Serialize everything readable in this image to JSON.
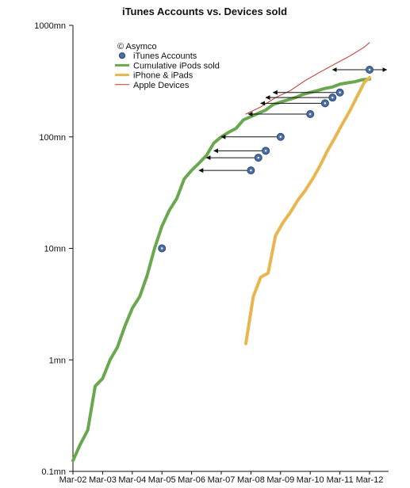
{
  "chart_data": {
    "type": "line",
    "title": "iTunes Accounts vs. Devices sold",
    "y_scale": "log",
    "ylim": [
      0.1,
      1000
    ],
    "y_ticks": [
      {
        "value": 1000,
        "label": "1000mn"
      },
      {
        "value": 100,
        "label": "100mn"
      },
      {
        "value": 10,
        "label": "10mn"
      },
      {
        "value": 1,
        "label": "1mn"
      },
      {
        "value": 0.1,
        "label": "0.1mn"
      }
    ],
    "xlim": [
      2002.17,
      2012.17
    ],
    "x_ticks": [
      {
        "value": 2002.17,
        "label": "Mar-02"
      },
      {
        "value": 2003.17,
        "label": "Mar-03"
      },
      {
        "value": 2004.17,
        "label": "Mar-04"
      },
      {
        "value": 2005.17,
        "label": "Mar-05"
      },
      {
        "value": 2006.17,
        "label": "Mar-06"
      },
      {
        "value": 2007.17,
        "label": "Mar-07"
      },
      {
        "value": 2008.17,
        "label": "Mar-08"
      },
      {
        "value": 2009.17,
        "label": "Mar-09"
      },
      {
        "value": 2010.17,
        "label": "Mar-10"
      },
      {
        "value": 2011.17,
        "label": "Mar-11"
      },
      {
        "value": 2012.17,
        "label": "Mar-12"
      }
    ],
    "legend": {
      "position": "top-left",
      "entries": [
        {
          "label": "© Asymco",
          "marker": "none"
        },
        {
          "label": "iTunes Accounts",
          "marker": "circle"
        },
        {
          "label": "Cumulative iPods sold",
          "marker": "line"
        },
        {
          "label": "iPhone & iPads",
          "marker": "line"
        },
        {
          "label": "Apple Devices",
          "marker": "line"
        }
      ]
    },
    "series": [
      {
        "name": "Cumulative iPods sold",
        "color": "#6aa84f",
        "x": [
          2002.17,
          2002.42,
          2002.67,
          2002.92,
          2003.17,
          2003.42,
          2003.67,
          2003.92,
          2004.17,
          2004.42,
          2004.67,
          2004.92,
          2005.17,
          2005.42,
          2005.67,
          2005.92,
          2006.17,
          2006.42,
          2006.67,
          2006.92,
          2007.17,
          2007.42,
          2007.67,
          2007.92,
          2008.17,
          2008.42,
          2008.67,
          2008.92,
          2009.17,
          2009.42,
          2009.67,
          2009.92,
          2010.17,
          2010.42,
          2010.67,
          2010.92,
          2011.17,
          2011.42,
          2011.67,
          2011.92,
          2012.17
        ],
        "y": [
          0.125,
          0.175,
          0.235,
          0.58,
          0.68,
          1.0,
          1.3,
          2.0,
          2.9,
          3.7,
          5.7,
          10.0,
          15.8,
          22.0,
          28.0,
          42.0,
          50.0,
          58.0,
          68.0,
          88.0,
          100.0,
          110.0,
          119.0,
          142.0,
          152.0,
          163.0,
          174.0,
          195.0,
          205.0,
          215.0,
          225.0,
          240.0,
          250.0,
          260.0,
          272.0,
          280.0,
          297.0,
          305.0,
          312.0,
          325.0,
          330.0
        ]
      },
      {
        "name": "iPhone & iPads",
        "color": "#e8b64e",
        "x": [
          2008.0,
          2008.25,
          2008.5,
          2008.75,
          2009.0,
          2009.25,
          2009.5,
          2009.75,
          2010.0,
          2010.25,
          2010.5,
          2010.75,
          2011.0,
          2011.25,
          2011.5,
          2011.75,
          2012.0,
          2012.17
        ],
        "y": [
          1.4,
          3.7,
          5.5,
          6.0,
          13.0,
          17.0,
          21.0,
          27.0,
          33.0,
          42.0,
          55.0,
          75.0,
          98.0,
          130.0,
          170.0,
          230.0,
          310.0,
          340.0
        ]
      },
      {
        "name": "Apple Devices",
        "color": "#c0392b",
        "x": [
          2008.0,
          2008.5,
          2009.0,
          2009.5,
          2010.0,
          2010.5,
          2011.0,
          2011.5,
          2012.0,
          2012.17
        ],
        "y": [
          160.0,
          185.0,
          225.0,
          260.0,
          320.0,
          380.0,
          450.0,
          530.0,
          640.0,
          700.0
        ]
      }
    ],
    "points": {
      "name": "iTunes Accounts",
      "color": "#4a6fa5",
      "x": [
        2005.17,
        2008.17,
        2008.42,
        2008.67,
        2009.17,
        2010.17,
        2010.67,
        2010.92,
        2011.17,
        2012.17
      ],
      "y": [
        10.0,
        50.0,
        65.0,
        75.0,
        100.0,
        160.0,
        200.0,
        225.0,
        250.0,
        400.0
      ]
    },
    "arrows": [
      {
        "from_x": 2008.17,
        "to_x": 2006.42,
        "y": 50.0
      },
      {
        "from_x": 2008.42,
        "to_x": 2006.67,
        "y": 65.0
      },
      {
        "from_x": 2008.67,
        "to_x": 2006.92,
        "y": 75.0
      },
      {
        "from_x": 2009.17,
        "to_x": 2007.17,
        "y": 100.0
      },
      {
        "from_x": 2010.17,
        "to_x": 2008.08,
        "y": 160.0
      },
      {
        "from_x": 2010.67,
        "to_x": 2008.5,
        "y": 200.0
      },
      {
        "from_x": 2010.92,
        "to_x": 2008.67,
        "y": 225.0
      },
      {
        "from_x": 2011.17,
        "to_x": 2008.92,
        "y": 250.0
      },
      {
        "from_x": 2012.17,
        "to_x": 2010.92,
        "y": 400.0
      },
      {
        "from_x": 2012.17,
        "to_x": 2012.75,
        "y": 400.0
      }
    ],
    "grid": false
  }
}
